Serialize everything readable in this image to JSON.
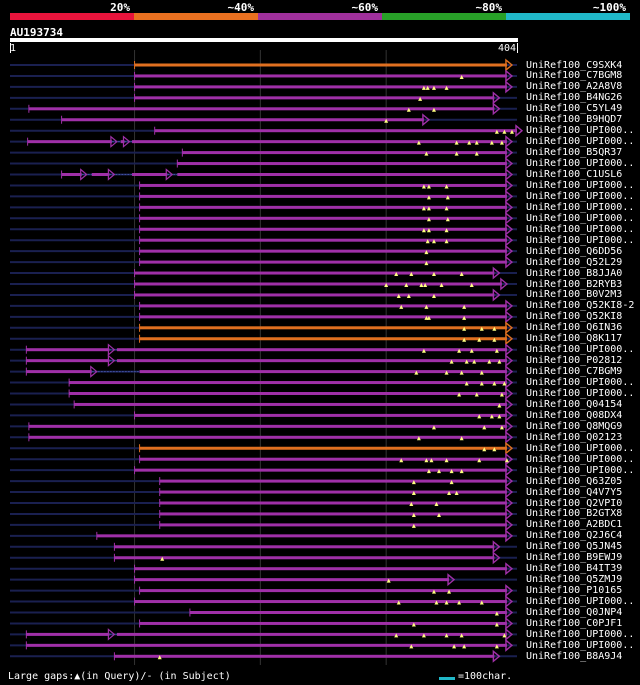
{
  "legend": {
    "labels": [
      "20%",
      "~40%",
      "~60%",
      "~80%",
      "~100%"
    ],
    "colors": [
      "#e8143c",
      "#e87020",
      "#a0309c",
      "#28a028",
      "#20b8c8"
    ]
  },
  "query": {
    "id": "AU193734",
    "start": "1",
    "end": "404",
    "length": 404
  },
  "colors": {
    "purple": "#a030a8",
    "orange": "#e07020",
    "gap": "#1a2050",
    "marker": "#ffff80",
    "grid": "#333333",
    "scale": "#20b8c8"
  },
  "footer": {
    "gaps_text": "Large gaps:▲(in Query)/- (in Subject)",
    "scale_text": "=100char."
  },
  "hits": [
    {
      "label": "UniRef100_C9SXK4",
      "start": 100,
      "end": 396,
      "color": "orange",
      "q": [],
      "gaps": []
    },
    {
      "label": "UniRef100_C7BGM8",
      "start": 100,
      "end": 396,
      "color": "purple",
      "q": [
        360
      ],
      "gaps": []
    },
    {
      "label": "UniRef100_A2A8V8",
      "start": 100,
      "end": 396,
      "color": "purple",
      "q": [
        330,
        333,
        338,
        348
      ],
      "gaps": []
    },
    {
      "label": "UniRef100_B4NG26",
      "start": 100,
      "end": 386,
      "color": "purple",
      "q": [
        327
      ],
      "gaps": []
    },
    {
      "label": "UniRef100_C5YL49",
      "start": 16,
      "end": 386,
      "color": "purple",
      "q": [
        318,
        338
      ],
      "gaps": []
    },
    {
      "label": "UniRef100_B9HQD7",
      "start": 42,
      "end": 330,
      "color": "purple",
      "q": [
        300
      ],
      "gaps": []
    },
    {
      "label": "UniRef100_UPI000..",
      "start": 116,
      "end": 404,
      "color": "purple",
      "q": [
        388,
        394,
        400
      ],
      "gaps": []
    },
    {
      "label": "UniRef100_UPI000..",
      "start": 15,
      "end": 396,
      "color": "purple",
      "q": [
        326,
        356,
        366,
        372,
        384,
        392
      ],
      "gaps": [
        [
          82,
          89
        ],
        [
          92,
          98
        ]
      ]
    },
    {
      "label": "UniRef100_B5QR37",
      "start": 138,
      "end": 396,
      "color": "purple",
      "q": [
        332,
        356,
        372
      ],
      "gaps": []
    },
    {
      "label": "UniRef100_UPI000..",
      "start": 134,
      "end": 396,
      "color": "purple",
      "q": [],
      "gaps": []
    },
    {
      "label": "UniRef100_C1USL6",
      "start": 42,
      "end": 396,
      "color": "purple",
      "q": [],
      "gaps": [
        [
          58,
          66
        ],
        [
          80,
          98
        ],
        [
          126,
          134
        ]
      ]
    },
    {
      "label": "UniRef100_UPI000..",
      "start": 104,
      "end": 396,
      "color": "purple",
      "q": [
        330,
        334,
        348
      ],
      "gaps": []
    },
    {
      "label": "UniRef100_UPI000..",
      "start": 104,
      "end": 396,
      "color": "purple",
      "q": [
        334,
        349
      ],
      "gaps": []
    },
    {
      "label": "UniRef100_UPI000..",
      "start": 104,
      "end": 396,
      "color": "purple",
      "q": [
        330,
        334,
        348
      ],
      "gaps": []
    },
    {
      "label": "UniRef100_UPI000..",
      "start": 104,
      "end": 396,
      "color": "purple",
      "q": [
        334,
        349
      ],
      "gaps": []
    },
    {
      "label": "UniRef100_UPI000..",
      "start": 104,
      "end": 396,
      "color": "purple",
      "q": [
        330,
        334,
        348
      ],
      "gaps": []
    },
    {
      "label": "UniRef100_UPI000..",
      "start": 104,
      "end": 396,
      "color": "purple",
      "q": [
        333,
        338,
        348
      ],
      "gaps": []
    },
    {
      "label": "UniRef100_Q6DD56",
      "start": 104,
      "end": 396,
      "color": "purple",
      "q": [
        332
      ],
      "gaps": []
    },
    {
      "label": "UniRef100_Q52L29",
      "start": 104,
      "end": 396,
      "color": "purple",
      "q": [
        332
      ],
      "gaps": []
    },
    {
      "label": "UniRef100_B8JJA0",
      "start": 100,
      "end": 386,
      "color": "purple",
      "q": [
        308,
        320,
        338,
        360
      ],
      "gaps": []
    },
    {
      "label": "UniRef100_B2RYB3",
      "start": 100,
      "end": 392,
      "color": "purple",
      "q": [
        300,
        316,
        328,
        331,
        344,
        368
      ],
      "gaps": []
    },
    {
      "label": "UniRef100_B0V2M3",
      "start": 100,
      "end": 386,
      "color": "purple",
      "q": [
        310,
        318,
        338
      ],
      "gaps": []
    },
    {
      "label": "UniRef100_Q52KI8-2",
      "start": 104,
      "end": 396,
      "color": "purple",
      "q": [
        312,
        332,
        362
      ],
      "gaps": []
    },
    {
      "label": "UniRef100_Q52KI8",
      "start": 104,
      "end": 396,
      "color": "purple",
      "q": [
        332,
        334,
        362
      ],
      "gaps": []
    },
    {
      "label": "UniRef100_Q6IN36",
      "start": 104,
      "end": 396,
      "color": "orange",
      "q": [
        362,
        376,
        386
      ],
      "gaps": []
    },
    {
      "label": "UniRef100_Q8K117",
      "start": 104,
      "end": 396,
      "color": "orange",
      "q": [
        362,
        374,
        386
      ],
      "gaps": []
    },
    {
      "label": "UniRef100_UPI000..",
      "start": 14,
      "end": 396,
      "color": "purple",
      "q": [
        330,
        358,
        368,
        388
      ],
      "gaps": [
        [
          80,
          86
        ]
      ]
    },
    {
      "label": "UniRef100_P02812",
      "start": 14,
      "end": 396,
      "color": "purple",
      "q": [
        352,
        364,
        370,
        382,
        390
      ],
      "gaps": [
        [
          80,
          86
        ]
      ]
    },
    {
      "label": "UniRef100_C7BGM9",
      "start": 14,
      "end": 396,
      "color": "purple",
      "q": [
        324,
        348,
        360,
        376
      ],
      "gaps": [
        [
          66,
          104
        ]
      ]
    },
    {
      "label": "UniRef100_UPI000..",
      "start": 48,
      "end": 396,
      "color": "purple",
      "q": [
        364,
        376,
        386,
        394
      ],
      "gaps": []
    },
    {
      "label": "UniRef100_UPI000..",
      "start": 48,
      "end": 396,
      "color": "purple",
      "q": [
        358,
        372,
        392
      ],
      "gaps": []
    },
    {
      "label": "UniRef100_Q04154",
      "start": 52,
      "end": 396,
      "color": "purple",
      "q": [
        390
      ],
      "gaps": []
    },
    {
      "label": "UniRef100_Q08DX4",
      "start": 100,
      "end": 396,
      "color": "purple",
      "q": [
        374,
        384,
        390
      ],
      "gaps": []
    },
    {
      "label": "UniRef100_Q8MQG9",
      "start": 16,
      "end": 396,
      "color": "purple",
      "q": [
        338,
        378,
        392
      ],
      "gaps": []
    },
    {
      "label": "UniRef100_Q02123",
      "start": 16,
      "end": 396,
      "color": "purple",
      "q": [
        326,
        360
      ],
      "gaps": []
    },
    {
      "label": "UniRef100_UPI000..",
      "start": 104,
      "end": 396,
      "color": "orange",
      "q": [
        378,
        386
      ],
      "gaps": []
    },
    {
      "label": "UniRef100_UPI000..",
      "start": 104,
      "end": 396,
      "color": "purple",
      "q": [
        312,
        332,
        336,
        348,
        374,
        396
      ],
      "gaps": []
    },
    {
      "label": "UniRef100_UPI000..",
      "start": 100,
      "end": 396,
      "color": "purple",
      "q": [
        334,
        342,
        352,
        360
      ],
      "gaps": []
    },
    {
      "label": "UniRef100_Q63Z05",
      "start": 120,
      "end": 396,
      "color": "purple",
      "q": [
        322,
        352
      ],
      "gaps": []
    },
    {
      "label": "UniRef100_Q4V7Y5",
      "start": 120,
      "end": 396,
      "color": "purple",
      "q": [
        322,
        350,
        356
      ],
      "gaps": []
    },
    {
      "label": "UniRef100_Q2VPI0",
      "start": 120,
      "end": 396,
      "color": "purple",
      "q": [
        320,
        340
      ],
      "gaps": []
    },
    {
      "label": "UniRef100_B2GTX8",
      "start": 120,
      "end": 396,
      "color": "purple",
      "q": [
        322,
        342
      ],
      "gaps": []
    },
    {
      "label": "UniRef100_A2BDC1",
      "start": 120,
      "end": 396,
      "color": "purple",
      "q": [
        322
      ],
      "gaps": []
    },
    {
      "label": "UniRef100_Q2J6C4",
      "start": 70,
      "end": 396,
      "color": "purple",
      "q": [],
      "gaps": []
    },
    {
      "label": "UniRef100_Q5JN45",
      "start": 84,
      "end": 386,
      "color": "purple",
      "q": [],
      "gaps": []
    },
    {
      "label": "UniRef100_B9EWJ9",
      "start": 84,
      "end": 386,
      "color": "purple",
      "q": [
        122
      ],
      "gaps": []
    },
    {
      "label": "UniRef100_B4IT39",
      "start": 100,
      "end": 396,
      "color": "purple",
      "q": [],
      "gaps": []
    },
    {
      "label": "UniRef100_Q5ZMJ9",
      "start": 100,
      "end": 350,
      "color": "purple",
      "q": [
        302
      ],
      "gaps": []
    },
    {
      "label": "UniRef100_P10165",
      "start": 104,
      "end": 396,
      "color": "purple",
      "q": [
        338,
        350
      ],
      "gaps": []
    },
    {
      "label": "UniRef100_UPI000..",
      "start": 100,
      "end": 396,
      "color": "purple",
      "q": [
        310,
        340,
        348,
        358,
        376
      ],
      "gaps": []
    },
    {
      "label": "UniRef100_Q0JNP4",
      "start": 144,
      "end": 396,
      "color": "purple",
      "q": [
        388
      ],
      "gaps": []
    },
    {
      "label": "UniRef100_C0PJF1",
      "start": 104,
      "end": 396,
      "color": "purple",
      "q": [
        322,
        388
      ],
      "gaps": []
    },
    {
      "label": "UniRef100_UPI000..",
      "start": 14,
      "end": 396,
      "color": "purple",
      "q": [
        308,
        330,
        348,
        360,
        394
      ],
      "gaps": [
        [
          80,
          86
        ]
      ]
    },
    {
      "label": "UniRef100_UPI000..",
      "start": 14,
      "end": 396,
      "color": "purple",
      "q": [
        320,
        354,
        362,
        388
      ],
      "gaps": []
    },
    {
      "label": "UniRef100_B8A9J4",
      "start": 84,
      "end": 386,
      "color": "purple",
      "q": [
        120
      ],
      "gaps": []
    }
  ]
}
